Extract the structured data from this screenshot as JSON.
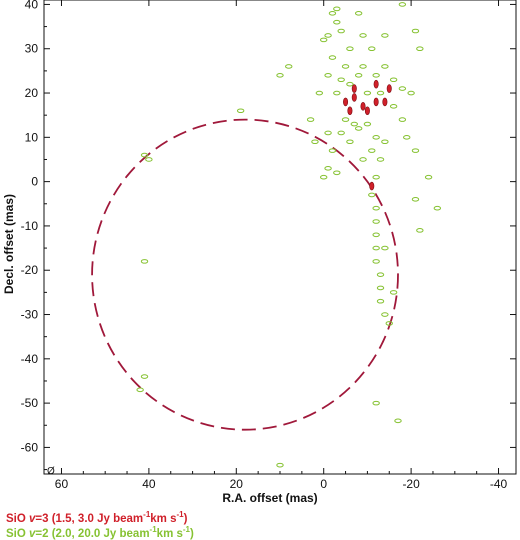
{
  "chart_data": {
    "type": "scatter",
    "xlabel": "R.A. offset (mas)",
    "ylabel": "Decl. offset (mas)",
    "xlim": [
      64,
      -44
    ],
    "ylim": [
      -66,
      41
    ],
    "x_ticks": [
      60,
      40,
      20,
      0,
      -20,
      -40
    ],
    "y_ticks": [
      40,
      30,
      20,
      10,
      0,
      -10,
      -20,
      -30,
      -40,
      -50,
      -60
    ],
    "x_tick_labels": [
      "60",
      "40",
      "20",
      "0",
      "-20",
      "-40"
    ],
    "y_tick_labels": [
      "40",
      "30",
      "20",
      "10",
      "0",
      "-10",
      "-20",
      "-30",
      "-40",
      "-50",
      "-60"
    ],
    "beam_label": "Ø",
    "ring": {
      "center": [
        18,
        -21
      ],
      "radius": 35
    },
    "series": [
      {
        "name": "SiO v=3",
        "color": "#d0202a",
        "points": [
          [
            -7,
            21
          ],
          [
            -7,
            19
          ],
          [
            -5,
            18
          ],
          [
            -12,
            22
          ],
          [
            -12,
            18
          ],
          [
            -9,
            17
          ],
          [
            -15,
            21
          ],
          [
            -14,
            18
          ],
          [
            -6,
            16
          ],
          [
            -11,
            -1
          ],
          [
            -10,
            16
          ]
        ]
      },
      {
        "name": "SiO v=2",
        "color": "#86c232",
        "points": [
          [
            -2,
            38
          ],
          [
            -3,
            36
          ],
          [
            -4,
            34
          ],
          [
            -6,
            30
          ],
          [
            -2,
            28
          ],
          [
            -5,
            26
          ],
          [
            -9,
            26
          ],
          [
            -1,
            24
          ],
          [
            -4,
            23
          ],
          [
            -8,
            24
          ],
          [
            -12,
            24
          ],
          [
            -14,
            26
          ],
          [
            -18,
            21
          ],
          [
            -16,
            23
          ],
          [
            -10,
            20
          ],
          [
            -13,
            20
          ],
          [
            -3,
            20
          ],
          [
            -5,
            14
          ],
          [
            -8,
            12
          ],
          [
            -10,
            13
          ],
          [
            -12,
            10
          ],
          [
            -14,
            9
          ],
          [
            -11,
            7
          ],
          [
            -13,
            5
          ],
          [
            -9,
            5
          ],
          [
            -6,
            9
          ],
          [
            -2,
            7
          ],
          [
            0,
            1
          ],
          [
            -1,
            3
          ],
          [
            -3,
            2
          ],
          [
            -12,
            1
          ],
          [
            -11,
            -3
          ],
          [
            -12,
            -6
          ],
          [
            -12,
            -9
          ],
          [
            -12,
            -12
          ],
          [
            -12,
            -15
          ],
          [
            -12,
            -18
          ],
          [
            -13,
            -21
          ],
          [
            -13,
            -24
          ],
          [
            -13,
            -27
          ],
          [
            -14,
            -30
          ],
          [
            -15,
            -32
          ],
          [
            -16,
            -25
          ],
          [
            -18,
            14
          ],
          [
            -20,
            20
          ],
          [
            -21,
            7
          ],
          [
            -24,
            1
          ],
          [
            -26,
            -6
          ],
          [
            -21,
            -4
          ],
          [
            -22,
            -11
          ],
          [
            -14,
            -15
          ],
          [
            -12,
            -50
          ],
          [
            -17,
            -54
          ],
          [
            0,
            32
          ],
          [
            1,
            20
          ],
          [
            3,
            14
          ],
          [
            -1,
            11
          ],
          [
            2,
            9
          ],
          [
            8,
            26
          ],
          [
            10,
            24
          ],
          [
            19,
            16
          ],
          [
            41,
            6
          ],
          [
            40,
            5
          ],
          [
            42,
            -47
          ],
          [
            41,
            -44
          ],
          [
            41,
            -18
          ],
          [
            -1,
            33
          ],
          [
            -3,
            39
          ],
          [
            -8,
            38
          ],
          [
            -18,
            40
          ],
          [
            -22,
            30
          ],
          [
            -19,
            10
          ],
          [
            -16,
            17
          ],
          [
            -6,
            22
          ],
          [
            -11,
            30
          ],
          [
            -9,
            33
          ],
          [
            -14,
            33
          ],
          [
            -7,
            13
          ],
          [
            -4,
            11
          ],
          [
            10,
            -64
          ],
          [
            -21,
            34
          ]
        ]
      }
    ]
  },
  "legend": {
    "v3": {
      "prefix": "SiO ",
      "v": "v",
      "suffix": "=3  (1.5, 3.0 Jy beam",
      "exp": "-1",
      "tail": "km s",
      "exp2": "-1",
      "end": ")"
    },
    "v2": {
      "prefix": "SiO ",
      "v": "v",
      "suffix": "=2  (2.0, 20.0 Jy beam",
      "exp": "-1",
      "tail": "km s",
      "exp2": "-1",
      "end": ")"
    }
  }
}
